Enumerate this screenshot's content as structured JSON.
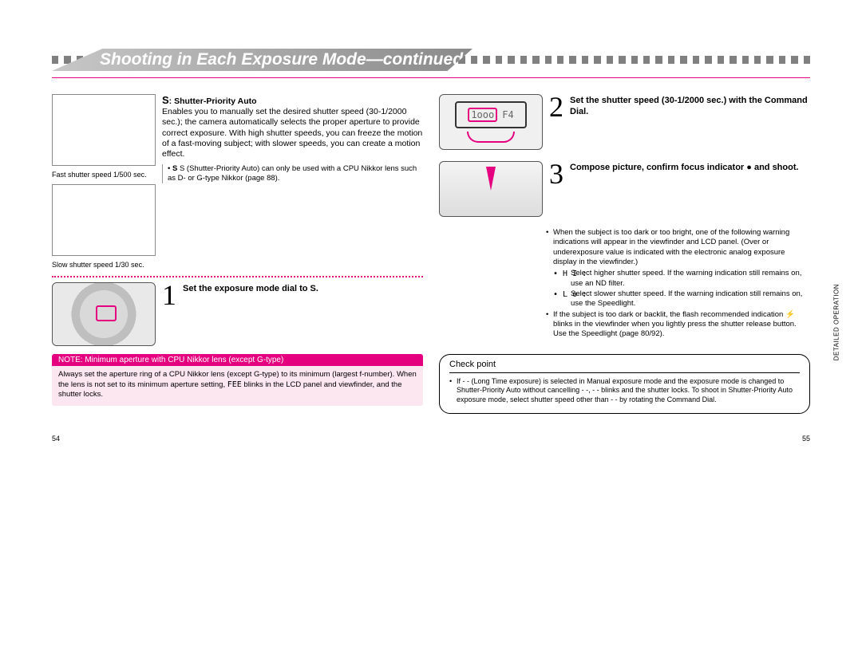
{
  "header": {
    "title": "Shooting in Each Exposure Mode—continued"
  },
  "left": {
    "mode_letter": "S",
    "mode_title": ": Shutter-Priority Auto",
    "intro": "Enables you to manually set the desired shutter speed (30-1/2000 sec.); the camera automatically selects the proper aperture to provide correct exposure. With high shutter speeds, you can freeze the motion of a fast-moving subject; with slower speeds, you can create a motion effect.",
    "note_bullet": "S (Shutter-Priority Auto) can only be used with a CPU Nikkor lens such as D- or G-type Nikkor (page 88).",
    "img1_caption": "Fast shutter speed  1/500 sec.",
    "img2_caption": "Slow shutter speed  1/30 sec.",
    "step1": {
      "num": "1",
      "text": "Set the exposure mode dial to S."
    },
    "notebox": {
      "header": "NOTE: Minimum aperture with CPU Nikkor lens (except G-type)",
      "body_a": "Always set the aperture ring of a CPU Nikkor lens (except G-type) to its minimum (largest f-number). When the lens is not set to its minimum aperture setting, ",
      "body_glyph": "FEE",
      "body_b": " blinks in the LCD panel and viewfinder, and the shutter locks."
    },
    "page_num": "54"
  },
  "right": {
    "step2": {
      "num": "2",
      "text": "Set the shutter speed (30-1/2000 sec.) with the Command Dial.",
      "lcd_left": "1ooo",
      "lcd_right": "F4"
    },
    "step3": {
      "num": "3",
      "text": "Compose picture, confirm focus indicator ● and shoot."
    },
    "warn": {
      "intro": "When the subject is too dark or too bright, one of the following warning indications will appear in the viewfinder and LCD panel. (Over or underexposure value is indicated with the electronic analog exposure display in the viewfinder.)",
      "hi_sym": "• H I :",
      "hi_text": "Select higher shutter speed. If the warning indication still remains on, use an ND filter.",
      "lo_sym": "• L o :",
      "lo_text": "Select slower shutter speed. If the warning indication still remains on, use the Speedlight.",
      "flash": "If the subject is too dark or backlit, the flash recommended indication ⚡ blinks in the viewfinder when you lightly press the shutter release button. Use the Speedlight (page 80/92)."
    },
    "checkpoint": {
      "title": "Check point",
      "body": "If - - (Long Time exposure) is selected in Manual exposure mode and the exposure mode is changed to Shutter-Priority Auto without cancelling - -, - - blinks and the shutter locks. To shoot in Shutter-Priority Auto exposure mode, select shutter speed other than - - by rotating the Command Dial."
    },
    "side_label": "DETAILED OPERATION",
    "page_num": "55"
  },
  "colors": {
    "accent": "#e4007f",
    "notebox_bg": "#fce6ef",
    "header_grad_from": "#c7c7c7",
    "header_grad_to": "#8a8a8a",
    "stripe": "#808080"
  }
}
